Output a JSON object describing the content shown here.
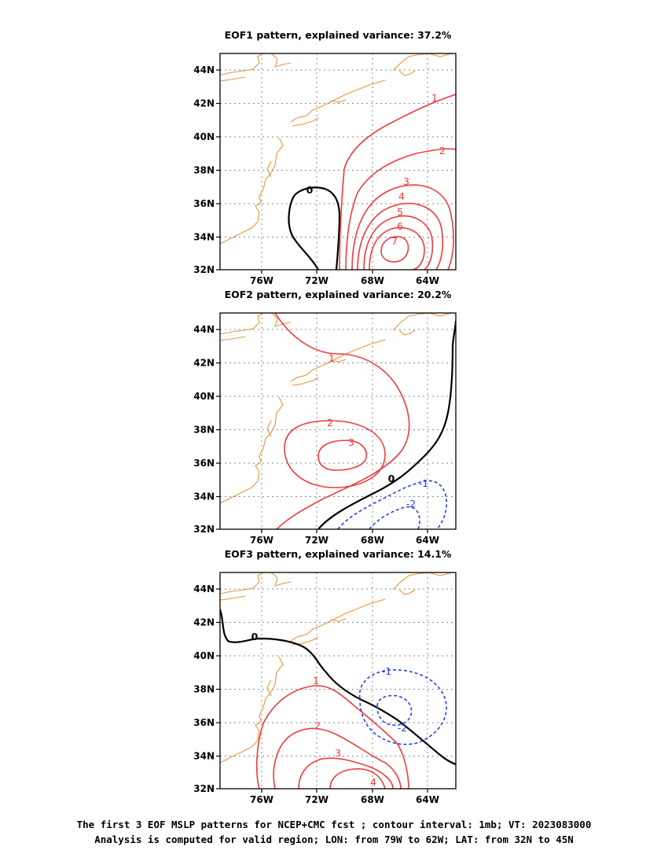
{
  "panels": [
    {
      "title": "EOF1 pattern, explained variance: 37.2%",
      "contour_labels": {
        "c0": "0",
        "c1": "1",
        "c2": "2",
        "c3": "3",
        "c4": "4",
        "c5": "5",
        "c6": "6",
        "c7": "7"
      }
    },
    {
      "title": "EOF2 pattern, explained variance: 20.2%",
      "contour_labels": {
        "c0": "0",
        "c1": "1",
        "c2": "2",
        "c3": "3",
        "n1": "-1",
        "n2": "-2"
      }
    },
    {
      "title": "EOF3 pattern, explained variance: 14.1%",
      "contour_labels": {
        "c0": "0",
        "c1": "1",
        "c2": "2",
        "c3": "3",
        "c4": "4",
        "n1": "-1",
        "n2": "-2"
      }
    }
  ],
  "axes": {
    "lat_ticks": [
      "44N",
      "42N",
      "40N",
      "38N",
      "36N",
      "34N",
      "32N"
    ],
    "lon_ticks": [
      "76W",
      "72W",
      "68W",
      "64W"
    ]
  },
  "colors": {
    "positive": "#ee3b3b",
    "negative": "#2a3fe8",
    "zero": "#000000",
    "coast": "#e89440",
    "grid": "#8a8a8a"
  },
  "caption": {
    "line1": "The first 3 EOF MSLP patterns for NCEP+CMC fcst ; contour interval: 1mb; VT: 2023083000",
    "line2": "Analysis is computed for valid region; LON: from 79W to 62W; LAT: from 32N to 45N"
  }
}
